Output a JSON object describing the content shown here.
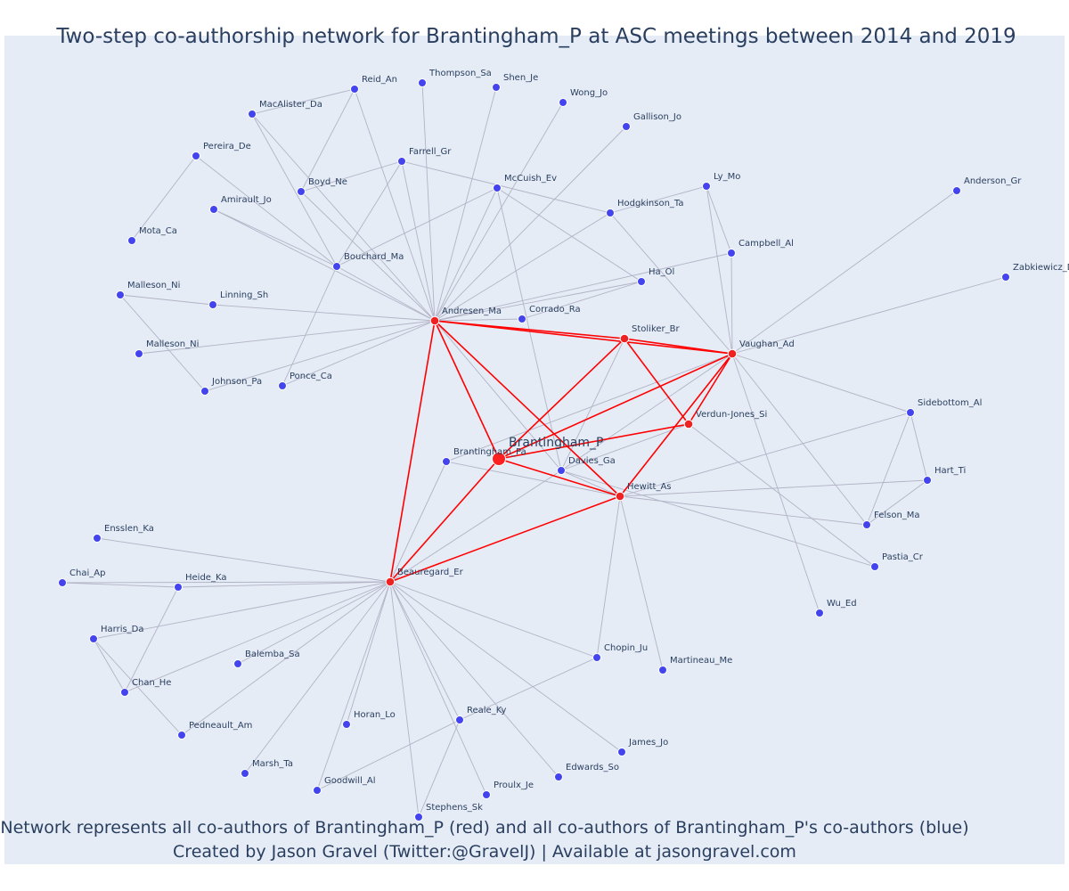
{
  "title": "Two-step co-authorship network for Brantingham_P at ASC meetings between 2014 and 2019",
  "caption": {
    "line1": "Network represents all co-authors of Brantingham_P (red) and all co-authors of Brantingham_P's co-authors (blue)",
    "line2": "Created by Jason Gravel (Twitter:@GravelJ) | Available at jasongravel.com"
  },
  "colors": {
    "background": "#e5ecf6",
    "secondary_edge": "#b3b3c6",
    "primary_edge": "#ff0000",
    "center_node": "#ff2020",
    "coauthor_node": "#ee2222",
    "second_step_node": "#4444ee",
    "node_outline": "#ffffff"
  },
  "nodes": [
    {
      "id": "Brantingham_P",
      "label": "Brantingham_P",
      "group": "center"
    },
    {
      "id": "Andresen_Ma",
      "label": "Andresen_Ma",
      "group": "coauthor"
    },
    {
      "id": "Stoliker_Br",
      "label": "Stoliker_Br",
      "group": "coauthor"
    },
    {
      "id": "Vaughan_Ad",
      "label": "Vaughan_Ad",
      "group": "coauthor"
    },
    {
      "id": "Verdun-Jones_Si",
      "label": "Verdun-Jones_Si",
      "group": "coauthor"
    },
    {
      "id": "Hewitt_As",
      "label": "Hewitt_As",
      "group": "coauthor"
    },
    {
      "id": "Beauregard_Er",
      "label": "Beauregard_Er",
      "group": "coauthor"
    },
    {
      "id": "Reid_An",
      "label": "Reid_An",
      "group": "second"
    },
    {
      "id": "Thompson_Sa",
      "label": "Thompson_Sa",
      "group": "second"
    },
    {
      "id": "Shen_Je",
      "label": "Shen_Je",
      "group": "second"
    },
    {
      "id": "Wong_Jo",
      "label": "Wong_Jo",
      "group": "second"
    },
    {
      "id": "MacAlister_Da",
      "label": "MacAlister_Da",
      "group": "second"
    },
    {
      "id": "Gallison_Jo",
      "label": "Gallison_Jo",
      "group": "second"
    },
    {
      "id": "Pereira_De",
      "label": "Pereira_De",
      "group": "second"
    },
    {
      "id": "Farrell_Gr",
      "label": "Farrell_Gr",
      "group": "second"
    },
    {
      "id": "Ly_Mo",
      "label": "Ly_Mo",
      "group": "second"
    },
    {
      "id": "Anderson_Gr",
      "label": "Anderson_Gr",
      "group": "second"
    },
    {
      "id": "McCuish_Ev",
      "label": "McCuish_Ev",
      "group": "second"
    },
    {
      "id": "Boyd_Ne",
      "label": "Boyd_Ne",
      "group": "second"
    },
    {
      "id": "Amirault_Jo",
      "label": "Amirault_Jo",
      "group": "second"
    },
    {
      "id": "Hodgkinson_Ta",
      "label": "Hodgkinson_Ta",
      "group": "second"
    },
    {
      "id": "Mota_Ca",
      "label": "Mota_Ca",
      "group": "second"
    },
    {
      "id": "Campbell_Al",
      "label": "Campbell_Al",
      "group": "second"
    },
    {
      "id": "Bouchard_Ma",
      "label": "Bouchard_Ma",
      "group": "second"
    },
    {
      "id": "Zabkiewicz_D",
      "label": "Zabkiewicz_D",
      "group": "second"
    },
    {
      "id": "Ha_Ol",
      "label": "Ha_Ol",
      "group": "second"
    },
    {
      "id": "Malleson_Ni_1",
      "label": "Malleson_Ni",
      "group": "second"
    },
    {
      "id": "Linning_Sh",
      "label": "Linning_Sh",
      "group": "second"
    },
    {
      "id": "Corrado_Ra",
      "label": "Corrado_Ra",
      "group": "second"
    },
    {
      "id": "Malleson_Ni_2",
      "label": "Malleson_Ni",
      "group": "second"
    },
    {
      "id": "Ponce_Ca",
      "label": "Ponce_Ca",
      "group": "second"
    },
    {
      "id": "Johnson_Pa",
      "label": "Johnson_Pa",
      "group": "second"
    },
    {
      "id": "Sidebottom_Al",
      "label": "Sidebottom_Al",
      "group": "second"
    },
    {
      "id": "Brantingham_Pa",
      "label": "Brantingham_Pa",
      "group": "second"
    },
    {
      "id": "Davies_Ga",
      "label": "Davies_Ga",
      "group": "second"
    },
    {
      "id": "Hart_Ti",
      "label": "Hart_Ti",
      "group": "second"
    },
    {
      "id": "Felson_Ma",
      "label": "Felson_Ma",
      "group": "second"
    },
    {
      "id": "Ensslen_Ka",
      "label": "Ensslen_Ka",
      "group": "second"
    },
    {
      "id": "Pastia_Cr",
      "label": "Pastia_Cr",
      "group": "second"
    },
    {
      "id": "Chai_Ap",
      "label": "Chai_Ap",
      "group": "second"
    },
    {
      "id": "Heide_Ka",
      "label": "Heide_Ka",
      "group": "second"
    },
    {
      "id": "Wu_Ed",
      "label": "Wu_Ed",
      "group": "second"
    },
    {
      "id": "Harris_Da",
      "label": "Harris_Da",
      "group": "second"
    },
    {
      "id": "Chopin_Ju",
      "label": "Chopin_Ju",
      "group": "second"
    },
    {
      "id": "Balemba_Sa",
      "label": "Balemba_Sa",
      "group": "second"
    },
    {
      "id": "Martineau_Me",
      "label": "Martineau_Me",
      "group": "second"
    },
    {
      "id": "Chan_He",
      "label": "Chan_He",
      "group": "second"
    },
    {
      "id": "Reale_Ky",
      "label": "Reale_Ky",
      "group": "second"
    },
    {
      "id": "Horan_Lo",
      "label": "Horan_Lo",
      "group": "second"
    },
    {
      "id": "Pedneault_Am",
      "label": "Pedneault_Am",
      "group": "second"
    },
    {
      "id": "James_Jo",
      "label": "James_Jo",
      "group": "second"
    },
    {
      "id": "Edwards_So",
      "label": "Edwards_So",
      "group": "second"
    },
    {
      "id": "Marsh_Ta",
      "label": "Marsh_Ta",
      "group": "second"
    },
    {
      "id": "Goodwill_Al",
      "label": "Goodwill_Al",
      "group": "second"
    },
    {
      "id": "Proulx_Je",
      "label": "Proulx_Je",
      "group": "second"
    },
    {
      "id": "Stephens_Sk",
      "label": "Stephens_Sk",
      "group": "second"
    }
  ],
  "edges": [
    [
      "Brantingham_P",
      "Andresen_Ma",
      "primary"
    ],
    [
      "Brantingham_P",
      "Stoliker_Br",
      "primary"
    ],
    [
      "Brantingham_P",
      "Vaughan_Ad",
      "primary"
    ],
    [
      "Brantingham_P",
      "Verdun-Jones_Si",
      "primary"
    ],
    [
      "Brantingham_P",
      "Hewitt_As",
      "primary"
    ],
    [
      "Brantingham_P",
      "Beauregard_Er",
      "primary"
    ],
    [
      "Andresen_Ma",
      "Stoliker_Br",
      "primary"
    ],
    [
      "Andresen_Ma",
      "Vaughan_Ad",
      "primary"
    ],
    [
      "Andresen_Ma",
      "Hewitt_As",
      "primary"
    ],
    [
      "Andresen_Ma",
      "Beauregard_Er",
      "primary"
    ],
    [
      "Stoliker_Br",
      "Vaughan_Ad",
      "primary"
    ],
    [
      "Stoliker_Br",
      "Verdun-Jones_Si",
      "primary"
    ],
    [
      "Vaughan_Ad",
      "Verdun-Jones_Si",
      "primary"
    ],
    [
      "Vaughan_Ad",
      "Hewitt_As",
      "primary"
    ],
    [
      "Hewitt_As",
      "Beauregard_Er",
      "primary"
    ],
    [
      "Andresen_Ma",
      "Reid_An",
      "secondary"
    ],
    [
      "Andresen_Ma",
      "Thompson_Sa",
      "secondary"
    ],
    [
      "Andresen_Ma",
      "Shen_Je",
      "secondary"
    ],
    [
      "Andresen_Ma",
      "Wong_Jo",
      "secondary"
    ],
    [
      "Andresen_Ma",
      "MacAlister_Da",
      "secondary"
    ],
    [
      "Andresen_Ma",
      "Gallison_Jo",
      "secondary"
    ],
    [
      "Andresen_Ma",
      "Farrell_Gr",
      "secondary"
    ],
    [
      "Andresen_Ma",
      "McCuish_Ev",
      "secondary"
    ],
    [
      "Andresen_Ma",
      "Boyd_Ne",
      "secondary"
    ],
    [
      "Andresen_Ma",
      "Amirault_Jo",
      "secondary"
    ],
    [
      "Andresen_Ma",
      "Hodgkinson_Ta",
      "secondary"
    ],
    [
      "Andresen_Ma",
      "Bouchard_Ma",
      "secondary"
    ],
    [
      "Andresen_Ma",
      "Ha_Ol",
      "secondary"
    ],
    [
      "Andresen_Ma",
      "Linning_Sh",
      "secondary"
    ],
    [
      "Andresen_Ma",
      "Corrado_Ra",
      "secondary"
    ],
    [
      "Andresen_Ma",
      "Malleson_Ni_2",
      "secondary"
    ],
    [
      "Andresen_Ma",
      "Ponce_Ca",
      "secondary"
    ],
    [
      "Andresen_Ma",
      "Johnson_Pa",
      "secondary"
    ],
    [
      "Andresen_Ma",
      "Campbell_Al",
      "secondary"
    ],
    [
      "Andresen_Ma",
      "Davies_Ga",
      "secondary"
    ],
    [
      "Reid_An",
      "MacAlister_Da",
      "secondary"
    ],
    [
      "Reid_An",
      "Boyd_Ne",
      "secondary"
    ],
    [
      "MacAlister_Da",
      "Bouchard_Ma",
      "secondary"
    ],
    [
      "Pereira_De",
      "Mota_Ca",
      "secondary"
    ],
    [
      "Pereira_De",
      "Bouchard_Ma",
      "secondary"
    ],
    [
      "Farrell_Gr",
      "Boyd_Ne",
      "secondary"
    ],
    [
      "Farrell_Gr",
      "Hodgkinson_Ta",
      "secondary"
    ],
    [
      "Farrell_Gr",
      "Bouchard_Ma",
      "secondary"
    ],
    [
      "Amirault_Jo",
      "Bouchard_Ma",
      "secondary"
    ],
    [
      "Malleson_Ni_1",
      "Linning_Sh",
      "secondary"
    ],
    [
      "Malleson_Ni_1",
      "Johnson_Pa",
      "secondary"
    ],
    [
      "Bouchard_Ma",
      "Ponce_Ca",
      "secondary"
    ],
    [
      "McCuish_Ev",
      "Ha_Ol",
      "secondary"
    ],
    [
      "McCuish_Ev",
      "Davies_Ga",
      "secondary"
    ],
    [
      "McCuish_Ev",
      "Bouchard_Ma",
      "secondary"
    ],
    [
      "Hodgkinson_Ta",
      "Ly_Mo",
      "secondary"
    ],
    [
      "Hodgkinson_Ta",
      "Vaughan_Ad",
      "secondary"
    ],
    [
      "Ly_Mo",
      "Campbell_Al",
      "secondary"
    ],
    [
      "Ly_Mo",
      "Vaughan_Ad",
      "secondary"
    ],
    [
      "Campbell_Al",
      "Vaughan_Ad",
      "secondary"
    ],
    [
      "Ha_Ol",
      "Corrado_Ra",
      "secondary"
    ],
    [
      "Vaughan_Ad",
      "Anderson_Gr",
      "secondary"
    ],
    [
      "Vaughan_Ad",
      "Zabkiewicz_D",
      "secondary"
    ],
    [
      "Vaughan_Ad",
      "Felson_Ma",
      "secondary"
    ],
    [
      "Vaughan_Ad",
      "Sidebottom_Al",
      "secondary"
    ],
    [
      "Vaughan_Ad",
      "Davies_Ga",
      "secondary"
    ],
    [
      "Vaughan_Ad",
      "Brantingham_Pa",
      "secondary"
    ],
    [
      "Vaughan_Ad",
      "Wu_Ed",
      "secondary"
    ],
    [
      "Sidebottom_Al",
      "Hart_Ti",
      "secondary"
    ],
    [
      "Sidebottom_Al",
      "Felson_Ma",
      "secondary"
    ],
    [
      "Sidebottom_Al",
      "Hewitt_As",
      "secondary"
    ],
    [
      "Hart_Ti",
      "Felson_Ma",
      "secondary"
    ],
    [
      "Hart_Ti",
      "Hewitt_As",
      "secondary"
    ],
    [
      "Verdun-Jones_Si",
      "Pastia_Cr",
      "secondary"
    ],
    [
      "Verdun-Jones_Si",
      "Davies_Ga",
      "secondary"
    ],
    [
      "Stoliker_Br",
      "Davies_Ga",
      "secondary"
    ],
    [
      "Hewitt_As",
      "Felson_Ma",
      "secondary"
    ],
    [
      "Hewitt_As",
      "Davies_Ga",
      "secondary"
    ],
    [
      "Hewitt_As",
      "Brantingham_Pa",
      "secondary"
    ],
    [
      "Hewitt_As",
      "Chopin_Ju",
      "secondary"
    ],
    [
      "Hewitt_As",
      "Martineau_Me",
      "secondary"
    ],
    [
      "Davies_Ga",
      "Pastia_Cr",
      "secondary"
    ],
    [
      "Brantingham_Pa",
      "Beauregard_Er",
      "secondary"
    ],
    [
      "Beauregard_Er",
      "Ensslen_Ka",
      "secondary"
    ],
    [
      "Beauregard_Er",
      "Chai_Ap",
      "secondary"
    ],
    [
      "Beauregard_Er",
      "Heide_Ka",
      "secondary"
    ],
    [
      "Beauregard_Er",
      "Harris_Da",
      "secondary"
    ],
    [
      "Beauregard_Er",
      "Balemba_Sa",
      "secondary"
    ],
    [
      "Beauregard_Er",
      "Chan_He",
      "secondary"
    ],
    [
      "Beauregard_Er",
      "Pedneault_Am",
      "secondary"
    ],
    [
      "Beauregard_Er",
      "Horan_Lo",
      "secondary"
    ],
    [
      "Beauregard_Er",
      "Marsh_Ta",
      "secondary"
    ],
    [
      "Beauregard_Er",
      "Goodwill_Al",
      "secondary"
    ],
    [
      "Beauregard_Er",
      "Stephens_Sk",
      "secondary"
    ],
    [
      "Beauregard_Er",
      "Proulx_Je",
      "secondary"
    ],
    [
      "Beauregard_Er",
      "Reale_Ky",
      "secondary"
    ],
    [
      "Beauregard_Er",
      "Edwards_So",
      "secondary"
    ],
    [
      "Beauregard_Er",
      "James_Jo",
      "secondary"
    ],
    [
      "Beauregard_Er",
      "Chopin_Ju",
      "secondary"
    ],
    [
      "Beauregard_Er",
      "Davies_Ga",
      "secondary"
    ],
    [
      "Chai_Ap",
      "Heide_Ka",
      "secondary"
    ],
    [
      "Heide_Ka",
      "Chan_He",
      "secondary"
    ],
    [
      "Harris_Da",
      "Chan_He",
      "secondary"
    ],
    [
      "Harris_Da",
      "Pedneault_Am",
      "secondary"
    ],
    [
      "Chopin_Ju",
      "Reale_Ky",
      "secondary"
    ],
    [
      "Reale_Ky",
      "Goodwill_Al",
      "secondary"
    ],
    [
      "Reale_Ky",
      "Stephens_Sk",
      "secondary"
    ]
  ]
}
